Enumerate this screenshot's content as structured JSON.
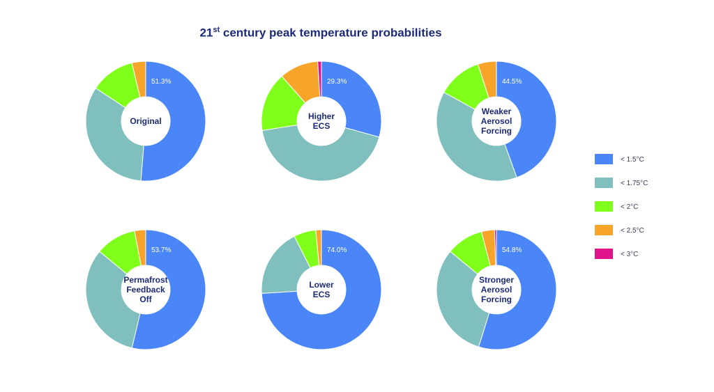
{
  "title": {
    "prefix": "21",
    "superscript": "st",
    "suffix": " century peak temperature probabilities"
  },
  "chart_data": {
    "type": "pie",
    "variant": "donut",
    "categories": [
      "< 1.5°C",
      "< 1.75°C",
      "< 2°C",
      "< 2.5°C",
      "< 3°C"
    ],
    "colors": [
      "#4a86f7",
      "#7fbfbd",
      "#7fff1a",
      "#f7a52a",
      "#e0148a"
    ],
    "legend_position": "right",
    "charts": [
      {
        "label": [
          "Original"
        ],
        "shown_value": "51.3%",
        "values": [
          51.3,
          33.0,
          12.0,
          3.7,
          0.0
        ]
      },
      {
        "label": [
          "Higher",
          "ECS"
        ],
        "shown_value": "29.3%",
        "values": [
          29.3,
          43.2,
          16.0,
          10.5,
          1.0
        ]
      },
      {
        "label": [
          "Weaker",
          "Aerosol",
          "Forcing"
        ],
        "shown_value": "44.5%",
        "values": [
          44.5,
          38.5,
          12.0,
          5.0,
          0.0
        ]
      },
      {
        "label": [
          "Permafrost",
          "Feedback",
          "Off"
        ],
        "shown_value": "53.7%",
        "values": [
          53.7,
          32.3,
          11.0,
          3.0,
          0.0
        ]
      },
      {
        "label": [
          "Lower",
          "ECS"
        ],
        "shown_value": "74.0%",
        "values": [
          74.0,
          18.5,
          6.0,
          1.5,
          0.0
        ]
      },
      {
        "label": [
          "Stronger",
          "Aerosol",
          "Forcing"
        ],
        "shown_value": "54.8%",
        "values": [
          54.8,
          31.2,
          10.0,
          3.5,
          0.5
        ]
      }
    ]
  }
}
